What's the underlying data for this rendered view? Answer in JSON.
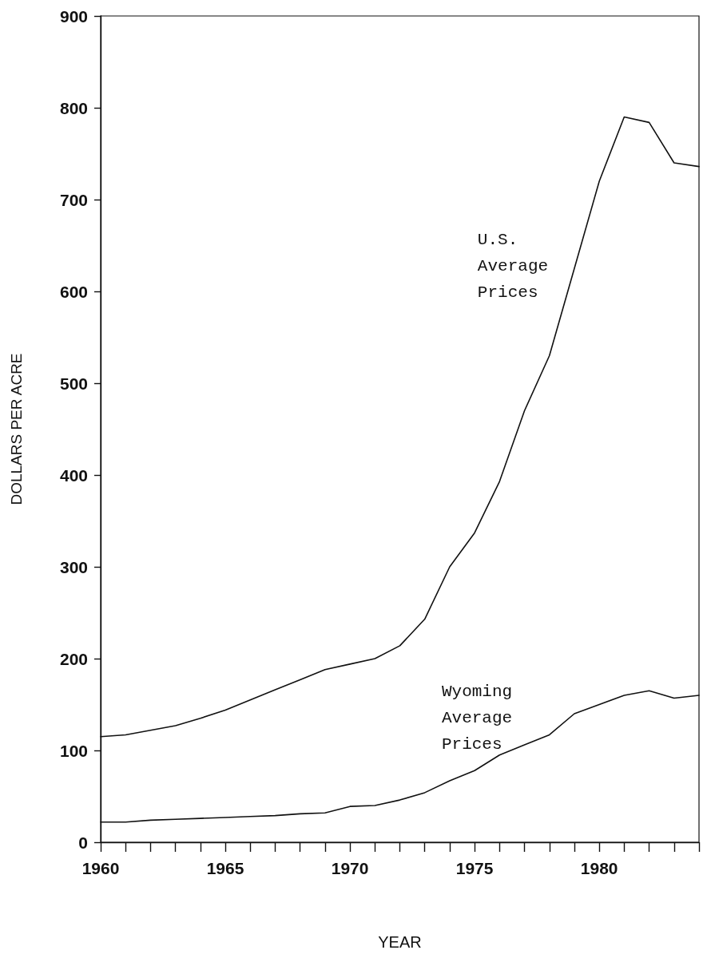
{
  "chart_data": {
    "type": "line",
    "xlabel": "YEAR",
    "ylabel": "DOLLARS PER ACRE",
    "x": [
      1960,
      1961,
      1962,
      1963,
      1964,
      1965,
      1966,
      1967,
      1968,
      1969,
      1970,
      1971,
      1972,
      1973,
      1974,
      1975,
      1976,
      1977,
      1978,
      1979,
      1980,
      1981,
      1982,
      1983,
      1984
    ],
    "series": [
      {
        "name": "U.S.\nAverage\nPrices",
        "color": "#111111",
        "values": [
          115,
          117,
          122,
          127,
          135,
          144,
          155,
          166,
          177,
          188,
          194,
          200,
          214,
          243,
          300,
          337,
          393,
          470,
          530,
          625,
          720,
          790,
          784,
          740,
          736
        ]
      },
      {
        "name": "Wyoming\nAverage\nPrices",
        "color": "#111111",
        "values": [
          22,
          22,
          24,
          25,
          26,
          27,
          28,
          29,
          31,
          32,
          39,
          40,
          46,
          54,
          67,
          78,
          95,
          106,
          117,
          140,
          150,
          160,
          165,
          157,
          160
        ]
      }
    ],
    "xlim": [
      1960,
      1984
    ],
    "xticks": [
      1960,
      {
        "value": 1961,
        "label": null
      },
      {
        "value": 1962,
        "label": null
      },
      {
        "value": 1963,
        "label": null
      },
      {
        "value": 1964,
        "label": null
      },
      1965,
      {
        "value": 1966,
        "label": null
      },
      {
        "value": 1967,
        "label": null
      },
      {
        "value": 1968,
        "label": null
      },
      {
        "value": 1969,
        "label": null
      },
      1970,
      {
        "value": 1971,
        "label": null
      },
      {
        "value": 1972,
        "label": null
      },
      {
        "value": 1973,
        "label": null
      },
      {
        "value": 1974,
        "label": null
      },
      1975,
      {
        "value": 1976,
        "label": null
      },
      {
        "value": 1977,
        "label": null
      },
      {
        "value": 1978,
        "label": null
      },
      {
        "value": 1979,
        "label": null
      },
      1980,
      {
        "value": 1981,
        "label": null
      },
      {
        "value": 1982,
        "label": null
      },
      {
        "value": 1983,
        "label": null
      },
      {
        "value": 1984,
        "label": null
      }
    ],
    "ylim": [
      0,
      900
    ],
    "yticks": [
      0,
      100,
      200,
      300,
      400,
      500,
      600,
      700,
      800,
      900
    ],
    "grid": false,
    "legend": false,
    "marker": "none",
    "line_style": "solid"
  }
}
